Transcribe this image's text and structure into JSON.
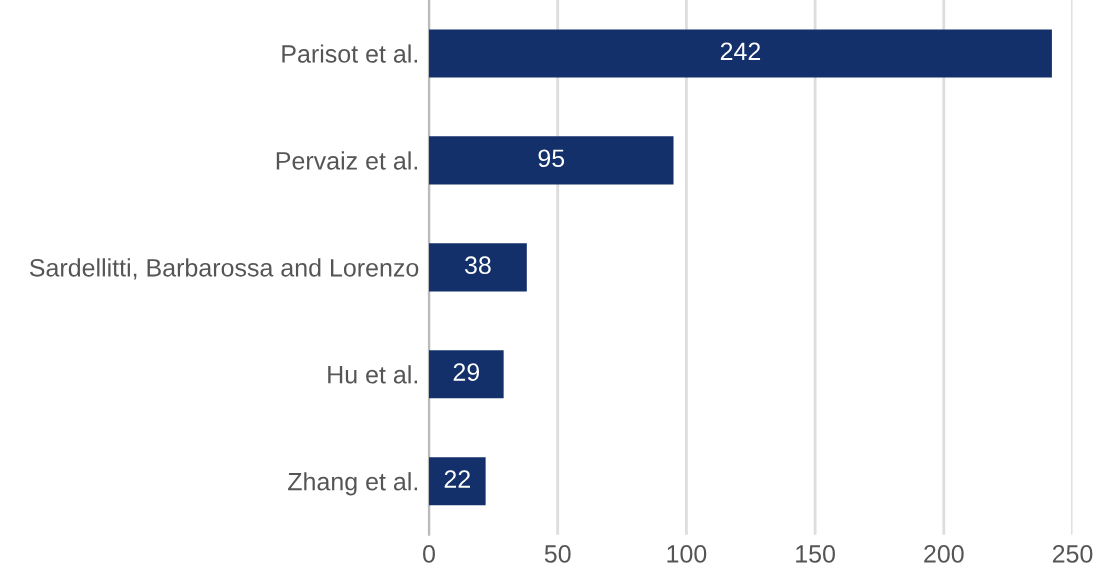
{
  "chart_data": {
    "type": "bar",
    "orientation": "horizontal",
    "categories": [
      "Parisot et al.",
      "Pervaiz et al.",
      "Sardellitti, Barbarossa and Lorenzo",
      "Hu et al.",
      "Zhang et al."
    ],
    "values": [
      242,
      95,
      38,
      29,
      22
    ],
    "color": "#13306b",
    "xlim": [
      0,
      250
    ],
    "xticks": [
      0,
      50,
      100,
      150,
      200,
      250
    ],
    "grid": "x",
    "data_labels": true
  }
}
